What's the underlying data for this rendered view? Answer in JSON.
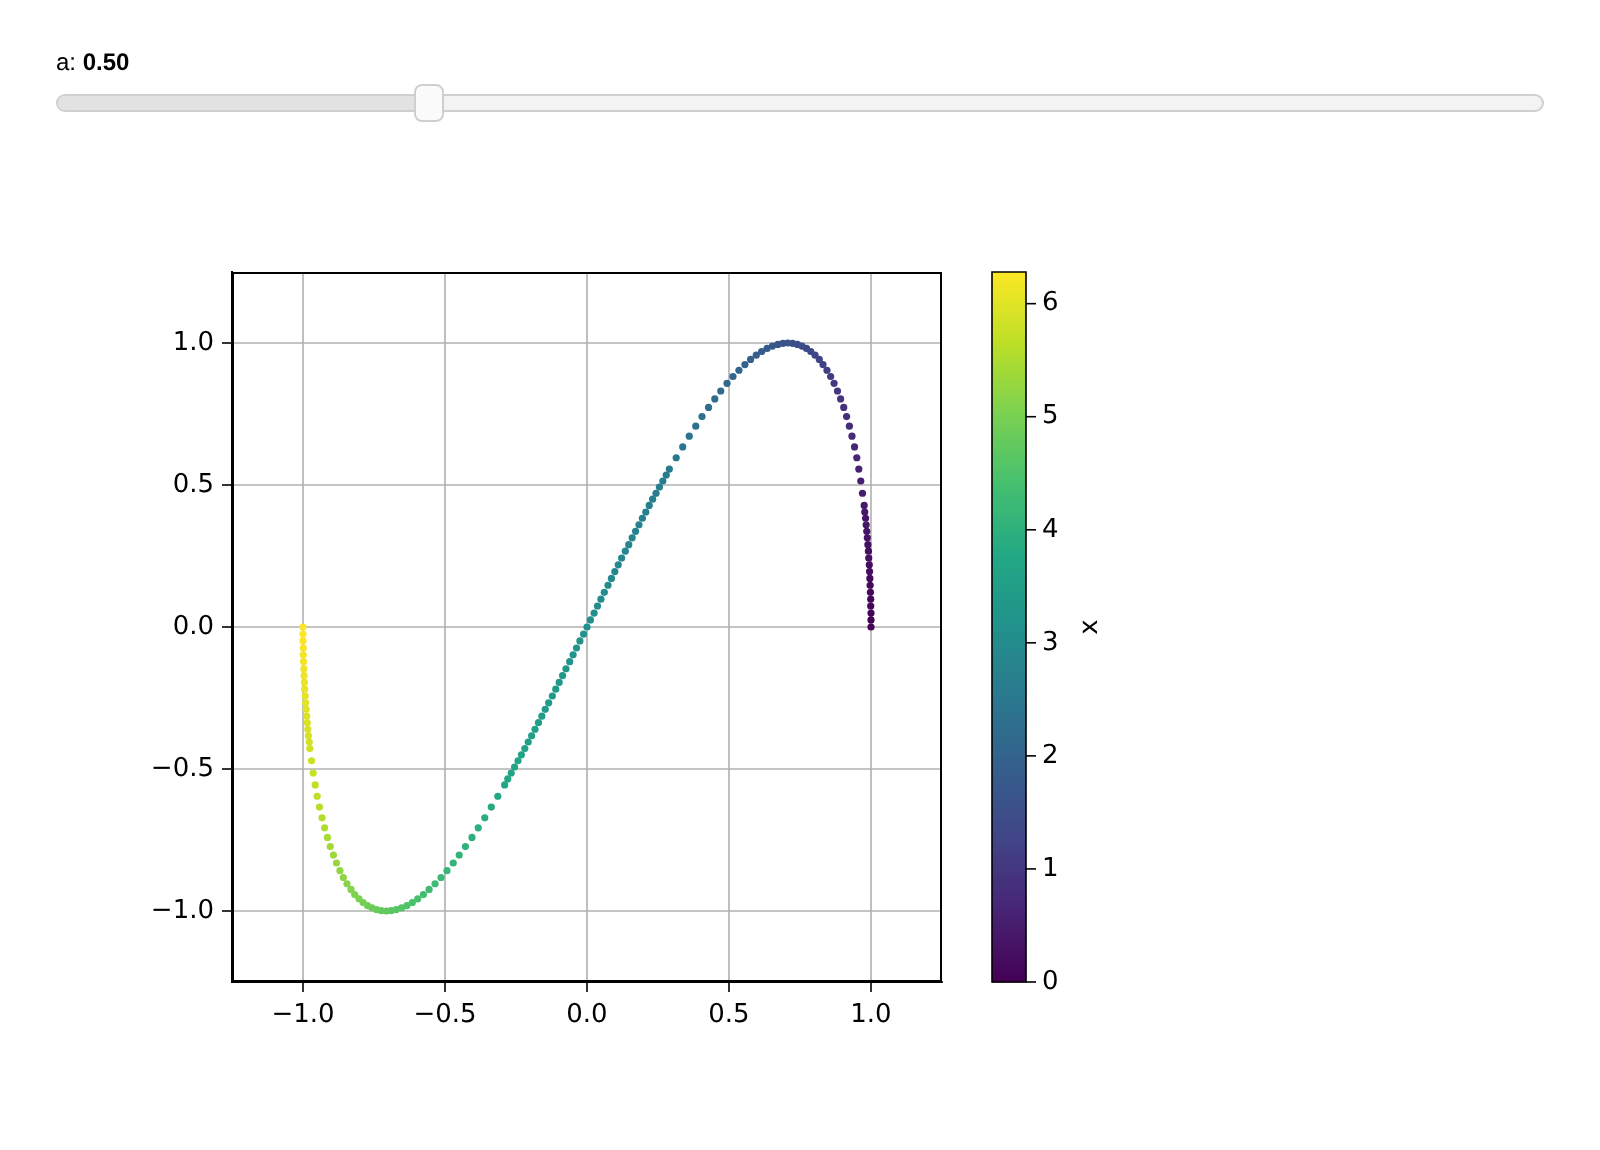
{
  "chart_data": {
    "type": "scatter",
    "annotations": [
      "a: 0.50"
    ],
    "x": [
      1,
      1,
      1,
      0.999,
      0.999,
      0.998,
      0.997,
      0.996,
      0.995,
      0.994,
      0.992,
      0.991,
      0.989,
      0.987,
      0.985,
      0.983,
      0.981,
      0.978,
      0.976,
      0.97,
      0.964,
      0.957,
      0.95,
      0.942,
      0.933,
      0.924,
      0.914,
      0.904,
      0.893,
      0.882,
      0.87,
      0.858,
      0.845,
      0.831,
      0.818,
      0.803,
      0.788,
      0.773,
      0.757,
      0.741,
      0.724,
      0.707,
      0.69,
      0.672,
      0.653,
      0.634,
      0.615,
      0.596,
      0.576,
      0.556,
      0.535,
      0.514,
      0.493,
      0.471,
      0.45,
      0.428,
      0.405,
      0.383,
      0.36,
      0.337,
      0.314,
      0.29,
      0.279,
      0.267,
      0.255,
      0.243,
      0.231,
      0.219,
      0.207,
      0.195,
      0.183,
      0.171,
      0.159,
      0.147,
      0.135,
      0.122,
      0.11,
      0.098,
      0.086,
      0.074,
      0.061,
      0.049,
      0.037,
      0.025,
      0.012,
      0,
      -0.012,
      -0.025,
      -0.037,
      -0.049,
      -0.061,
      -0.074,
      -0.086,
      -0.098,
      -0.11,
      -0.122,
      -0.135,
      -0.147,
      -0.159,
      -0.171,
      -0.183,
      -0.195,
      -0.207,
      -0.219,
      -0.231,
      -0.243,
      -0.255,
      -0.267,
      -0.279,
      -0.29,
      -0.314,
      -0.337,
      -0.36,
      -0.383,
      -0.405,
      -0.428,
      -0.45,
      -0.471,
      -0.493,
      -0.514,
      -0.535,
      -0.556,
      -0.576,
      -0.596,
      -0.615,
      -0.634,
      -0.653,
      -0.672,
      -0.69,
      -0.707,
      -0.724,
      -0.741,
      -0.757,
      -0.773,
      -0.788,
      -0.803,
      -0.818,
      -0.831,
      -0.845,
      -0.858,
      -0.87,
      -0.882,
      -0.893,
      -0.904,
      -0.914,
      -0.924,
      -0.933,
      -0.942,
      -0.95,
      -0.957,
      -0.964,
      -0.97,
      -0.976,
      -0.978,
      -0.981,
      -0.983,
      -0.985,
      -0.987,
      -0.989,
      -0.991,
      -0.992,
      -0.994,
      -0.995,
      -0.996,
      -0.997,
      -0.998,
      -0.999,
      -0.999,
      -1,
      -1,
      -1
    ],
    "values": [
      0,
      0.025,
      0.049,
      0.074,
      0.098,
      0.122,
      0.147,
      0.171,
      0.195,
      0.219,
      0.243,
      0.267,
      0.29,
      0.314,
      0.337,
      0.36,
      0.383,
      0.405,
      0.428,
      0.471,
      0.514,
      0.556,
      0.596,
      0.634,
      0.672,
      0.707,
      0.741,
      0.773,
      0.803,
      0.831,
      0.858,
      0.882,
      0.904,
      0.924,
      0.942,
      0.957,
      0.97,
      0.981,
      0.989,
      0.995,
      0.999,
      1,
      0.999,
      0.995,
      0.989,
      0.981,
      0.97,
      0.957,
      0.942,
      0.924,
      0.904,
      0.882,
      0.858,
      0.831,
      0.803,
      0.773,
      0.741,
      0.707,
      0.672,
      0.634,
      0.596,
      0.556,
      0.535,
      0.514,
      0.493,
      0.471,
      0.45,
      0.428,
      0.405,
      0.383,
      0.36,
      0.337,
      0.314,
      0.29,
      0.267,
      0.243,
      0.219,
      0.195,
      0.171,
      0.147,
      0.122,
      0.098,
      0.074,
      0.049,
      0.025,
      0,
      -0.025,
      -0.049,
      -0.074,
      -0.098,
      -0.122,
      -0.147,
      -0.171,
      -0.195,
      -0.219,
      -0.243,
      -0.267,
      -0.29,
      -0.314,
      -0.337,
      -0.36,
      -0.383,
      -0.405,
      -0.428,
      -0.45,
      -0.471,
      -0.493,
      -0.514,
      -0.535,
      -0.556,
      -0.596,
      -0.634,
      -0.672,
      -0.707,
      -0.741,
      -0.773,
      -0.803,
      -0.831,
      -0.858,
      -0.882,
      -0.904,
      -0.924,
      -0.942,
      -0.957,
      -0.97,
      -0.981,
      -0.989,
      -0.995,
      -0.999,
      -1,
      -0.999,
      -0.995,
      -0.989,
      -0.981,
      -0.97,
      -0.957,
      -0.942,
      -0.924,
      -0.904,
      -0.882,
      -0.858,
      -0.831,
      -0.803,
      -0.773,
      -0.741,
      -0.707,
      -0.672,
      -0.634,
      -0.596,
      -0.556,
      -0.514,
      -0.471,
      -0.428,
      -0.405,
      -0.383,
      -0.36,
      -0.337,
      -0.314,
      -0.29,
      -0.267,
      -0.243,
      -0.219,
      -0.195,
      -0.171,
      -0.147,
      -0.122,
      -0.098,
      -0.074,
      -0.049,
      -0.025,
      0
    ],
    "cvalues": [
      0,
      0.02,
      0.05,
      0.07,
      0.1,
      0.12,
      0.15,
      0.17,
      0.2,
      0.22,
      0.25,
      0.27,
      0.29,
      0.32,
      0.34,
      0.37,
      0.39,
      0.42,
      0.44,
      0.49,
      0.54,
      0.59,
      0.64,
      0.69,
      0.74,
      0.79,
      0.83,
      0.88,
      0.93,
      0.98,
      1.03,
      1.08,
      1.13,
      1.18,
      1.23,
      1.28,
      1.33,
      1.37,
      1.42,
      1.47,
      1.52,
      1.57,
      1.62,
      1.67,
      1.72,
      1.77,
      1.82,
      1.87,
      1.91,
      1.96,
      2.01,
      2.06,
      2.11,
      2.16,
      2.21,
      2.26,
      2.31,
      2.36,
      2.41,
      2.45,
      2.5,
      2.55,
      2.58,
      2.6,
      2.63,
      2.65,
      2.68,
      2.7,
      2.72,
      2.75,
      2.77,
      2.8,
      2.82,
      2.85,
      2.87,
      2.9,
      2.92,
      2.95,
      2.97,
      2.99,
      3.02,
      3.04,
      3.07,
      3.09,
      3.12,
      3.14,
      3.17,
      3.19,
      3.22,
      3.24,
      3.26,
      3.29,
      3.31,
      3.34,
      3.36,
      3.39,
      3.41,
      3.44,
      3.46,
      3.49,
      3.51,
      3.53,
      3.56,
      3.58,
      3.61,
      3.63,
      3.66,
      3.68,
      3.71,
      3.73,
      3.78,
      3.83,
      3.88,
      3.93,
      3.98,
      4.03,
      4.07,
      4.12,
      4.17,
      4.22,
      4.27,
      4.32,
      4.37,
      4.42,
      4.47,
      4.52,
      4.57,
      4.61,
      4.66,
      4.71,
      4.76,
      4.81,
      4.86,
      4.91,
      4.96,
      5.01,
      5.06,
      5.11,
      5.15,
      5.2,
      5.25,
      5.3,
      5.35,
      5.4,
      5.45,
      5.5,
      5.55,
      5.6,
      5.65,
      5.69,
      5.74,
      5.79,
      5.84,
      5.87,
      5.89,
      5.91,
      5.94,
      5.96,
      5.99,
      6.01,
      6.04,
      6.06,
      6.09,
      6.11,
      6.14,
      6.16,
      6.19,
      6.21,
      6.23,
      6.26,
      6.28
    ],
    "xlim": [
      -1.25,
      1.25
    ],
    "ylim": [
      -1.25,
      1.25
    ],
    "xticks": [
      {
        "value": -1,
        "label": "−1.0"
      },
      {
        "value": -0.5,
        "label": "−0.5"
      },
      {
        "value": 0,
        "label": "0.0"
      },
      0.5,
      {
        "value": 1,
        "label": "1.0"
      }
    ],
    "yticks": [
      {
        "value": -1,
        "label": "−1.0"
      },
      {
        "value": -0.5,
        "label": "−0.5"
      },
      {
        "value": 0,
        "label": "0.0"
      },
      0.5,
      {
        "value": 1,
        "label": "1.0"
      }
    ],
    "clim": [
      0,
      6.28
    ],
    "cticks": [
      0,
      1,
      2,
      3,
      4,
      5,
      6
    ],
    "clabel": "x",
    "grid": true,
    "marker": "circle"
  }
}
